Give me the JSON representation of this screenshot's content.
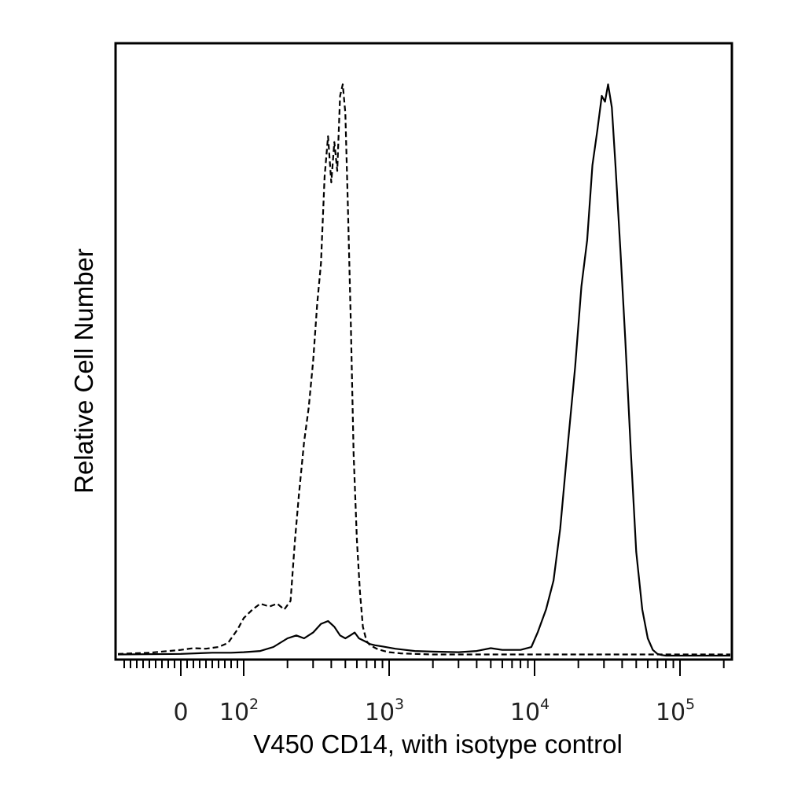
{
  "chart_data": {
    "type": "line",
    "xlabel": "V450 CD14, with isotype control",
    "ylabel": "Relative Cell Number",
    "x_scale": "biexponential",
    "xlim": [
      -100,
      250000
    ],
    "ylim": [
      0,
      100
    ],
    "grid": false,
    "legend": "none",
    "x_tick_labels": [
      {
        "value": 0,
        "base": "0",
        "exp": ""
      },
      {
        "value": 100,
        "base": "10",
        "exp": "2"
      },
      {
        "value": 1000,
        "base": "10",
        "exp": "3"
      },
      {
        "value": 10000,
        "base": "10",
        "exp": "4"
      },
      {
        "value": 100000,
        "base": "10",
        "exp": "5"
      }
    ],
    "series": [
      {
        "style": "dashed",
        "x": [
          -100,
          -50,
          0,
          20,
          40,
          60,
          75,
          90,
          100,
          115,
          130,
          150,
          170,
          190,
          210,
          225,
          240,
          260,
          280,
          300,
          320,
          340,
          360,
          380,
          400,
          420,
          440,
          460,
          480,
          500,
          520,
          545,
          570,
          600,
          630,
          660,
          700,
          740,
          780,
          820,
          870,
          920,
          1000,
          1200,
          1500,
          2000,
          3000,
          5000,
          8000,
          12000,
          20000,
          50000,
          100000,
          250000
        ],
        "y": [
          0.3,
          0.5,
          1.0,
          1.3,
          1.2,
          1.5,
          2.2,
          4.5,
          6.5,
          8.0,
          9.0,
          8.5,
          9.0,
          8.0,
          9.5,
          20.0,
          28.0,
          37.0,
          43.0,
          51.0,
          61.0,
          68.0,
          83.0,
          90.0,
          82.0,
          89.0,
          84.0,
          97.0,
          99.0,
          94.0,
          78.0,
          58.0,
          35.0,
          20.0,
          11.0,
          5.0,
          2.5,
          1.8,
          1.5,
          1.2,
          1.0,
          0.8,
          0.6,
          0.4,
          0.3,
          0.2,
          0.2,
          0.2,
          0.2,
          0.2,
          0.2,
          0.2,
          0.2,
          0.2
        ]
      },
      {
        "style": "solid",
        "x": [
          -100,
          0,
          50,
          80,
          100,
          130,
          160,
          200,
          230,
          260,
          300,
          340,
          380,
          420,
          460,
          500,
          540,
          580,
          620,
          680,
          740,
          800,
          900,
          1100,
          1500,
          2000,
          3000,
          4000,
          5000,
          6000,
          8000,
          9500,
          10500,
          12000,
          13500,
          15000,
          17000,
          19000,
          21000,
          23000,
          25000,
          27000,
          29000,
          30500,
          32000,
          34000,
          36000,
          39000,
          42000,
          46000,
          50000,
          55000,
          60000,
          65000,
          70000,
          75000,
          80000,
          100000,
          250000
        ],
        "y": [
          0.2,
          0.3,
          0.5,
          0.5,
          0.6,
          0.8,
          1.5,
          3.0,
          3.5,
          3.0,
          4.0,
          5.5,
          6.0,
          5.0,
          3.5,
          3.0,
          3.5,
          4.0,
          3.0,
          2.5,
          2.0,
          1.8,
          1.6,
          1.2,
          0.8,
          0.7,
          0.6,
          0.8,
          1.3,
          1.0,
          1.0,
          1.5,
          4.0,
          8.0,
          13.0,
          22.0,
          37.0,
          50.0,
          64.0,
          72.0,
          85.0,
          91.0,
          97.0,
          96.0,
          99.0,
          95.0,
          85.0,
          70.0,
          55.0,
          35.0,
          18.0,
          8.0,
          3.0,
          1.0,
          0.3,
          0.1,
          0.0,
          0.0,
          0.0
        ]
      }
    ]
  }
}
